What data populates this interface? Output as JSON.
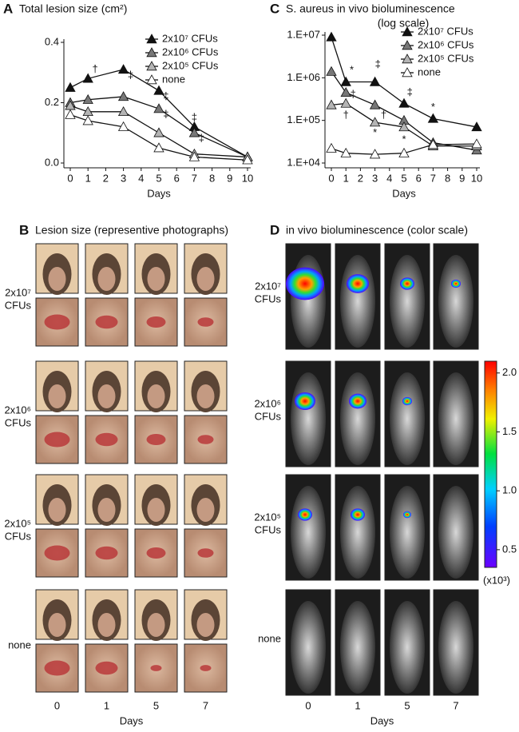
{
  "chart_data": [
    {
      "type": "line",
      "letter": "A",
      "title": "Total lesion size (cm²)",
      "xlabel": "Days",
      "x": [
        0,
        1,
        3,
        5,
        7,
        10
      ],
      "xlim": [
        0,
        10
      ],
      "xticks": [
        0,
        1,
        2,
        3,
        4,
        5,
        6,
        7,
        8,
        9,
        10
      ],
      "ylim": [
        0,
        0.4
      ],
      "yticks": [
        {
          "value": 0,
          "label": "0.0"
        },
        0.2,
        0.4
      ],
      "log_y": false,
      "series": [
        {
          "name": "2x10⁷ CFUs",
          "color": "#111111",
          "values": [
            0.25,
            0.28,
            0.31,
            0.24,
            0.12,
            0.02
          ]
        },
        {
          "name": "2x10⁶ CFUs",
          "color": "#777777",
          "values": [
            0.2,
            0.21,
            0.22,
            0.18,
            0.1,
            0.02
          ]
        },
        {
          "name": "2x10⁵ CFUs",
          "color": "#b4b4b4",
          "values": [
            0.19,
            0.17,
            0.17,
            0.1,
            0.03,
            0.02
          ]
        },
        {
          "name": "none",
          "color": "#ffffff",
          "values": [
            0.16,
            0.14,
            0.12,
            0.05,
            0.02,
            0.01
          ]
        }
      ],
      "annotations": [
        {
          "text": "†",
          "x": 1.4,
          "y": 0.31
        },
        {
          "text": "‡",
          "x": 3.4,
          "y": 0.29
        },
        {
          "text": "‡",
          "x": 5.4,
          "y": 0.22
        },
        {
          "text": "‡",
          "x": 5.4,
          "y": 0.16
        },
        {
          "text": "‡",
          "x": 7,
          "y": 0.15
        },
        {
          "text": "‡",
          "x": 7.4,
          "y": 0.08
        }
      ]
    },
    {
      "type": "line",
      "letter": "C",
      "title": "S. aureus in vivo bioluminescence",
      "subtitle": "(log scale)",
      "xlabel": "Days",
      "x": [
        0,
        1,
        3,
        5,
        7,
        10
      ],
      "xlim": [
        0,
        10
      ],
      "xticks": [
        0,
        1,
        2,
        3,
        4,
        5,
        6,
        7,
        8,
        9,
        10
      ],
      "ylim": [
        10000,
        10000000
      ],
      "log_y": true,
      "yticks": [
        {
          "value": 10000,
          "label": "1.E+04"
        },
        {
          "value": 100000,
          "label": "1.E+05"
        },
        {
          "value": 1000000,
          "label": "1.E+06"
        },
        {
          "value": 10000000,
          "label": "1.E+07"
        }
      ],
      "series": [
        {
          "name": "2x10⁷ CFUs",
          "color": "#111111",
          "values": [
            9000000,
            800000,
            800000,
            250000,
            110000,
            70000
          ]
        },
        {
          "name": "2x10⁶ CFUs",
          "color": "#777777",
          "values": [
            1400000,
            450000,
            230000,
            100000,
            30000,
            20000
          ]
        },
        {
          "name": "2x10⁵ CFUs",
          "color": "#b4b4b4",
          "values": [
            230000,
            250000,
            90000,
            70000,
            25000,
            25000
          ]
        },
        {
          "name": "none",
          "color": "#ffffff",
          "values": [
            22000,
            17000,
            16000,
            17000,
            27000,
            28000
          ]
        }
      ],
      "annotations": [
        {
          "text": "*",
          "x": 1.4,
          "y": 1500000
        },
        {
          "text": "‡",
          "x": 1.5,
          "y": 400000
        },
        {
          "text": "†",
          "x": 1,
          "y": 130000
        },
        {
          "text": "‡",
          "x": 3.2,
          "y": 2000000
        },
        {
          "text": "†",
          "x": 3.6,
          "y": 130000
        },
        {
          "text": "*",
          "x": 3,
          "y": 50000
        },
        {
          "text": "‡",
          "x": 5.4,
          "y": 450000
        },
        {
          "text": "*",
          "x": 5,
          "y": 35000
        },
        {
          "text": "*",
          "x": 7,
          "y": 200000
        }
      ]
    }
  ],
  "panel_b": {
    "letter": "B",
    "title": "Lesion size (representive photographs)",
    "rows": [
      [
        "2x10⁷",
        "CFUs"
      ],
      [
        "2x10⁶",
        "CFUs"
      ],
      [
        "2x10⁵",
        "CFUs"
      ],
      [
        "none"
      ]
    ],
    "columns": [
      "0",
      "1",
      "5",
      "7"
    ],
    "xlabel": "Days"
  },
  "panel_d": {
    "letter": "D",
    "title": "in vivo bioluminescence (color scale)",
    "rows": [
      [
        "2x10⁷",
        "CFUs"
      ],
      [
        "2x10⁶",
        "CFUs"
      ],
      [
        "2x10⁵",
        "CFUs"
      ],
      [
        "none"
      ]
    ],
    "columns": [
      "0",
      "1",
      "5",
      "7"
    ],
    "xlabel": "Days",
    "colorbar": {
      "lim": [
        0.35,
        2.1
      ],
      "ticks": [
        0.5,
        {
          "value": 1,
          "label": "1.0"
        },
        1.5,
        {
          "value": 2,
          "label": "2.0"
        }
      ],
      "label": "(x10³)"
    }
  }
}
